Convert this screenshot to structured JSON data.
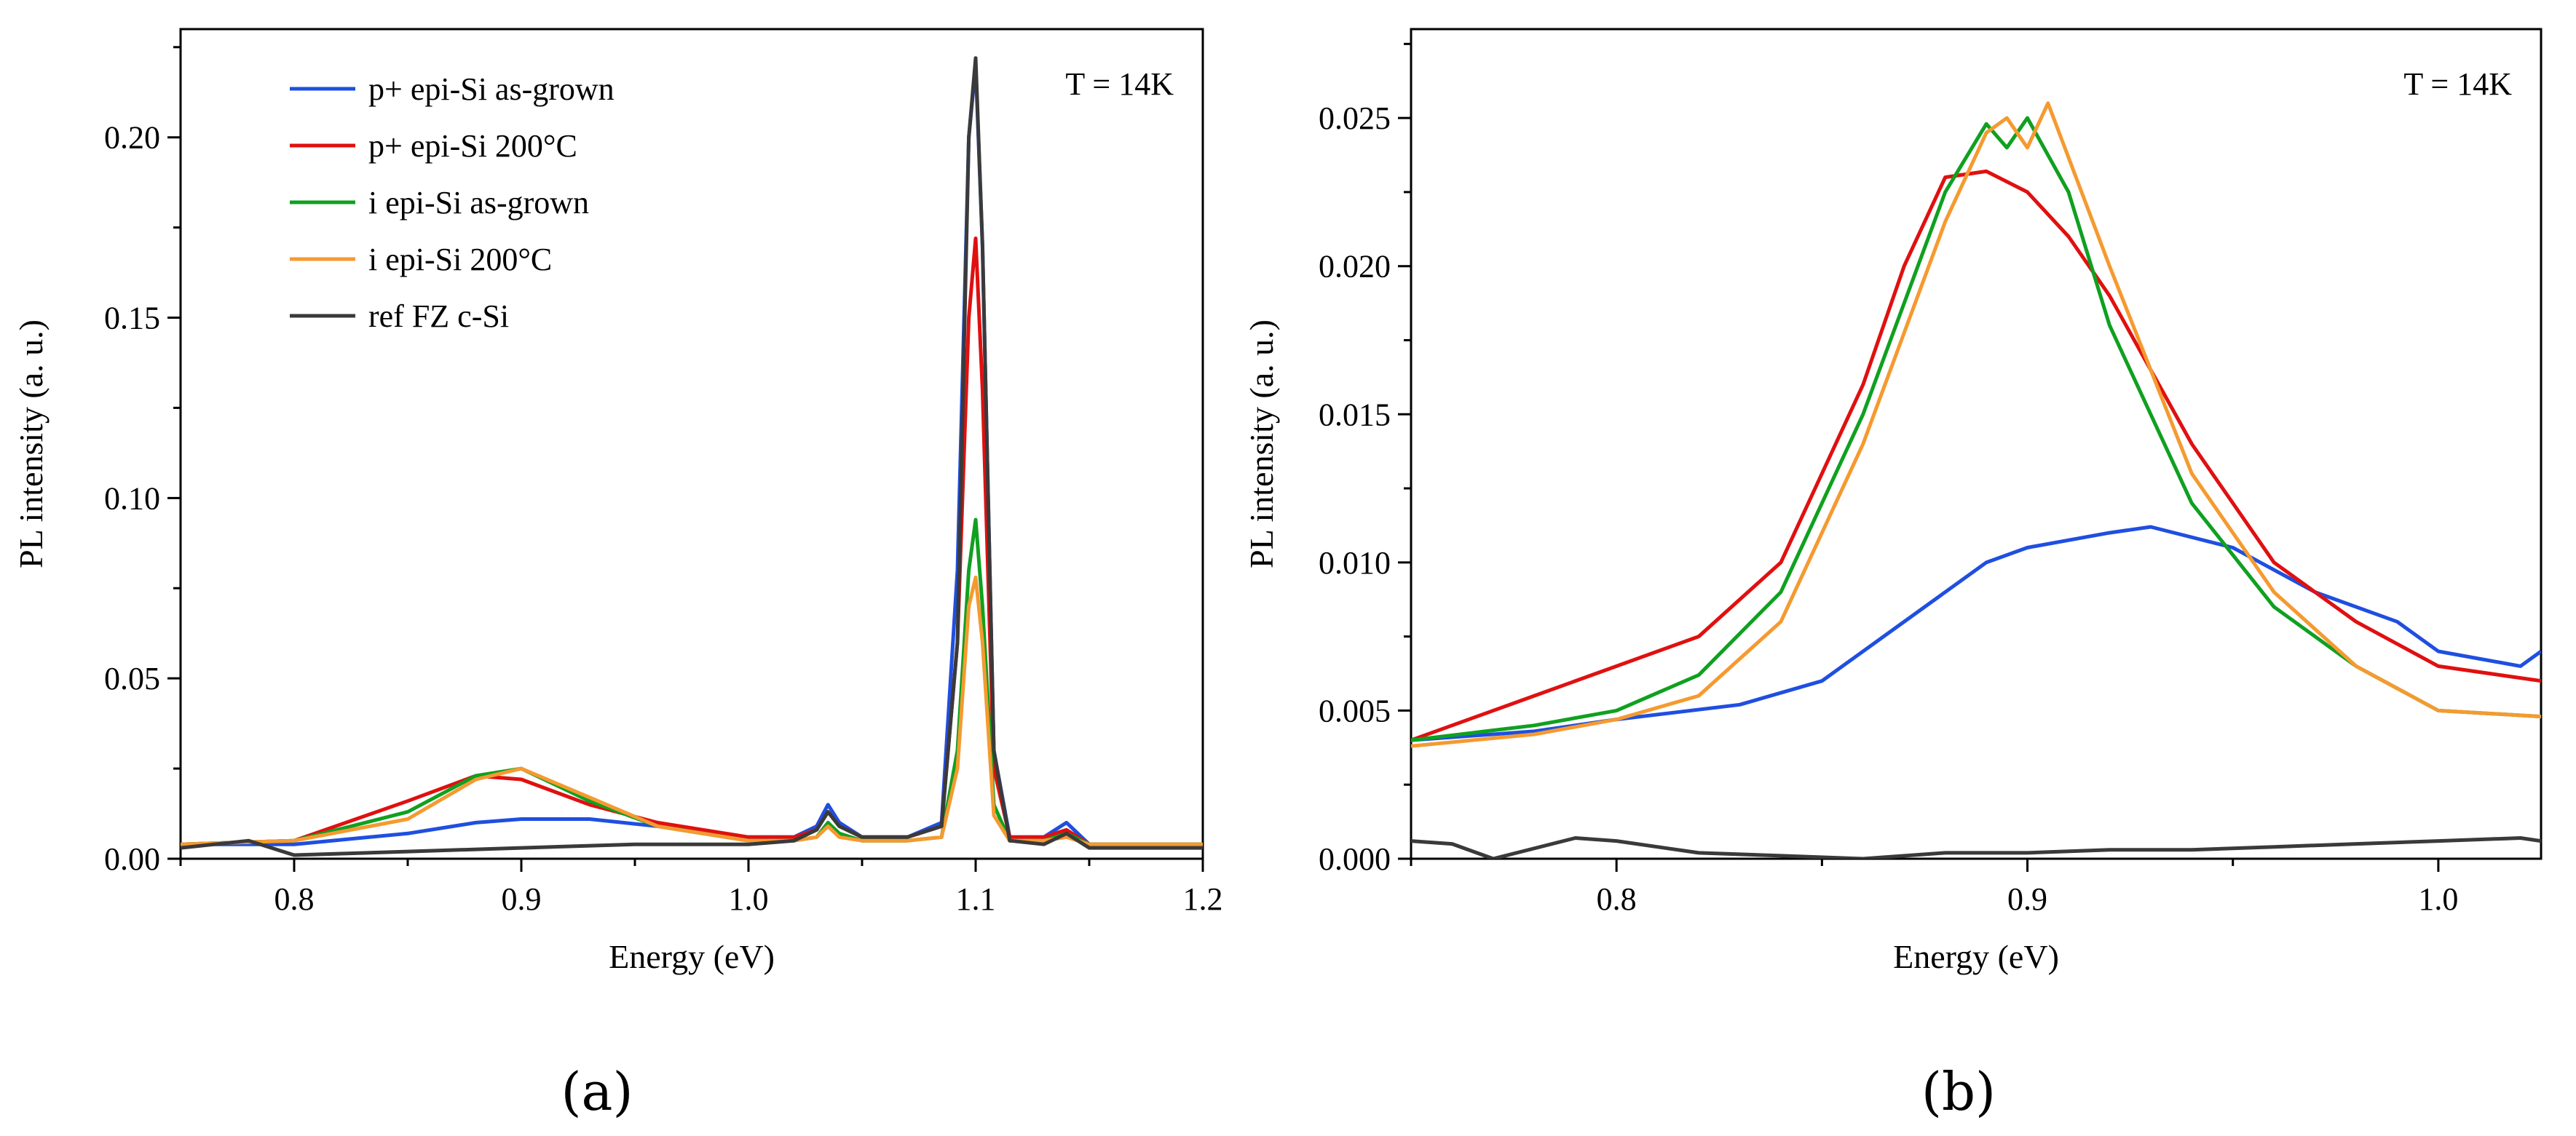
{
  "chart_data": [
    {
      "type": "line",
      "panel_label": "(a)",
      "xlabel": "Energy (eV)",
      "ylabel": "PL intensity (a. u.)",
      "annotation": "T = 14K",
      "xlim": [
        0.75,
        1.2
      ],
      "ylim": [
        0.0,
        0.23
      ],
      "xticks": [
        0.8,
        0.9,
        1.0,
        1.1,
        1.2
      ],
      "xtick_labels": [
        "0.8",
        "0.9",
        "1.0",
        "1.1",
        "1.2"
      ],
      "yticks": [
        0.0,
        0.05,
        0.1,
        0.15,
        0.2
      ],
      "ytick_labels": [
        "0.00",
        "0.05",
        "0.10",
        "0.15",
        "0.20"
      ],
      "legend_position": "top-left",
      "series": [
        {
          "name": "p+ epi-Si as-grown",
          "color": "#1f4fe0",
          "x": [
            0.75,
            0.8,
            0.85,
            0.88,
            0.9,
            0.93,
            0.96,
            1.0,
            1.02,
            1.03,
            1.035,
            1.04,
            1.05,
            1.07,
            1.085,
            1.092,
            1.097,
            1.1,
            1.103,
            1.108,
            1.115,
            1.13,
            1.14,
            1.15,
            1.17,
            1.2
          ],
          "y": [
            0.004,
            0.004,
            0.007,
            0.01,
            0.011,
            0.011,
            0.009,
            0.006,
            0.006,
            0.009,
            0.015,
            0.01,
            0.006,
            0.006,
            0.01,
            0.08,
            0.2,
            0.22,
            0.17,
            0.03,
            0.006,
            0.006,
            0.01,
            0.004,
            0.004,
            0.004
          ]
        },
        {
          "name": "p+ epi-Si 200°C",
          "color": "#e01010",
          "x": [
            0.75,
            0.8,
            0.85,
            0.88,
            0.9,
            0.93,
            0.96,
            1.0,
            1.02,
            1.03,
            1.035,
            1.04,
            1.05,
            1.07,
            1.085,
            1.092,
            1.097,
            1.1,
            1.103,
            1.108,
            1.115,
            1.13,
            1.14,
            1.15,
            1.17,
            1.2
          ],
          "y": [
            0.004,
            0.005,
            0.016,
            0.023,
            0.022,
            0.015,
            0.01,
            0.006,
            0.006,
            0.008,
            0.013,
            0.009,
            0.006,
            0.006,
            0.009,
            0.06,
            0.15,
            0.172,
            0.13,
            0.025,
            0.006,
            0.006,
            0.008,
            0.004,
            0.004,
            0.004
          ]
        },
        {
          "name": "i epi-Si as-grown",
          "color": "#10a020",
          "x": [
            0.75,
            0.8,
            0.85,
            0.88,
            0.9,
            0.93,
            0.96,
            1.0,
            1.02,
            1.03,
            1.035,
            1.04,
            1.05,
            1.07,
            1.085,
            1.092,
            1.097,
            1.1,
            1.103,
            1.108,
            1.115,
            1.13,
            1.14,
            1.15,
            1.17,
            1.2
          ],
          "y": [
            0.004,
            0.005,
            0.013,
            0.023,
            0.025,
            0.016,
            0.009,
            0.005,
            0.005,
            0.006,
            0.01,
            0.007,
            0.005,
            0.005,
            0.006,
            0.03,
            0.08,
            0.094,
            0.07,
            0.015,
            0.005,
            0.005,
            0.007,
            0.004,
            0.004,
            0.004
          ]
        },
        {
          "name": "i epi-Si 200°C",
          "color": "#f59a30",
          "x": [
            0.75,
            0.8,
            0.85,
            0.88,
            0.9,
            0.93,
            0.96,
            1.0,
            1.02,
            1.03,
            1.035,
            1.04,
            1.05,
            1.07,
            1.085,
            1.092,
            1.097,
            1.1,
            1.103,
            1.108,
            1.115,
            1.13,
            1.14,
            1.15,
            1.17,
            1.2
          ],
          "y": [
            0.004,
            0.005,
            0.011,
            0.022,
            0.025,
            0.017,
            0.009,
            0.005,
            0.005,
            0.006,
            0.009,
            0.006,
            0.005,
            0.005,
            0.006,
            0.025,
            0.07,
            0.078,
            0.06,
            0.012,
            0.005,
            0.005,
            0.006,
            0.004,
            0.004,
            0.004
          ]
        },
        {
          "name": "ref FZ c-Si",
          "color": "#3a3a3a",
          "x": [
            0.75,
            0.78,
            0.8,
            0.85,
            0.9,
            0.95,
            1.0,
            1.02,
            1.03,
            1.035,
            1.04,
            1.05,
            1.07,
            1.085,
            1.092,
            1.097,
            1.1,
            1.103,
            1.108,
            1.115,
            1.13,
            1.14,
            1.15,
            1.17,
            1.2
          ],
          "y": [
            0.003,
            0.005,
            0.001,
            0.002,
            0.003,
            0.004,
            0.004,
            0.005,
            0.008,
            0.013,
            0.009,
            0.006,
            0.006,
            0.009,
            0.06,
            0.2,
            0.222,
            0.17,
            0.03,
            0.005,
            0.004,
            0.007,
            0.003,
            0.003,
            0.003
          ]
        }
      ]
    },
    {
      "type": "line",
      "panel_label": "(b)",
      "xlabel": "Energy (eV)",
      "ylabel": "PL intensity (a. u.)",
      "annotation": "T = 14K",
      "xlim": [
        0.75,
        1.025
      ],
      "ylim": [
        0.0,
        0.028
      ],
      "xticks": [
        0.8,
        0.9,
        1.0
      ],
      "xtick_labels": [
        "0.8",
        "0.9",
        "1.0"
      ],
      "yticks": [
        0.0,
        0.005,
        0.01,
        0.015,
        0.02,
        0.025
      ],
      "ytick_labels": [
        "0.000",
        "0.005",
        "0.010",
        "0.015",
        "0.020",
        "0.025"
      ],
      "series": [
        {
          "name": "p+ epi-Si as-grown",
          "color": "#1f4fe0",
          "x": [
            0.75,
            0.78,
            0.8,
            0.83,
            0.85,
            0.87,
            0.89,
            0.9,
            0.92,
            0.93,
            0.95,
            0.97,
            0.99,
            1.0,
            1.02,
            1.025
          ],
          "y": [
            0.004,
            0.0043,
            0.0047,
            0.0052,
            0.006,
            0.008,
            0.01,
            0.0105,
            0.011,
            0.0112,
            0.0105,
            0.009,
            0.008,
            0.007,
            0.0065,
            0.007
          ]
        },
        {
          "name": "p+ epi-Si 200°C",
          "color": "#e01010",
          "x": [
            0.75,
            0.78,
            0.8,
            0.82,
            0.84,
            0.86,
            0.87,
            0.88,
            0.89,
            0.9,
            0.91,
            0.92,
            0.94,
            0.96,
            0.98,
            1.0,
            1.025
          ],
          "y": [
            0.004,
            0.0055,
            0.0065,
            0.0075,
            0.01,
            0.016,
            0.02,
            0.023,
            0.0232,
            0.0225,
            0.021,
            0.019,
            0.014,
            0.01,
            0.008,
            0.0065,
            0.006
          ]
        },
        {
          "name": "i epi-Si as-grown",
          "color": "#10a020",
          "x": [
            0.75,
            0.78,
            0.8,
            0.82,
            0.84,
            0.86,
            0.88,
            0.89,
            0.895,
            0.9,
            0.91,
            0.92,
            0.94,
            0.96,
            0.98,
            1.0,
            1.025
          ],
          "y": [
            0.004,
            0.0045,
            0.005,
            0.0062,
            0.009,
            0.015,
            0.0225,
            0.0248,
            0.024,
            0.025,
            0.0225,
            0.018,
            0.012,
            0.0085,
            0.0065,
            0.005,
            0.0048
          ]
        },
        {
          "name": "i epi-Si 200°C",
          "color": "#f59a30",
          "x": [
            0.75,
            0.78,
            0.8,
            0.82,
            0.84,
            0.86,
            0.88,
            0.89,
            0.895,
            0.9,
            0.905,
            0.92,
            0.94,
            0.96,
            0.98,
            1.0,
            1.025
          ],
          "y": [
            0.0038,
            0.0042,
            0.0047,
            0.0055,
            0.008,
            0.014,
            0.0215,
            0.0245,
            0.025,
            0.024,
            0.0255,
            0.02,
            0.013,
            0.009,
            0.0065,
            0.005,
            0.0048
          ]
        },
        {
          "name": "ref FZ c-Si",
          "color": "#3a3a3a",
          "x": [
            0.75,
            0.76,
            0.77,
            0.79,
            0.8,
            0.82,
            0.84,
            0.86,
            0.88,
            0.9,
            0.92,
            0.94,
            0.96,
            0.98,
            1.0,
            1.02,
            1.025
          ],
          "y": [
            0.0006,
            0.0005,
            0.0,
            0.0007,
            0.0006,
            0.0002,
            0.0001,
            0.0,
            0.0002,
            0.0002,
            0.0003,
            0.0003,
            0.0004,
            0.0005,
            0.0006,
            0.0007,
            0.0006
          ]
        }
      ]
    }
  ]
}
